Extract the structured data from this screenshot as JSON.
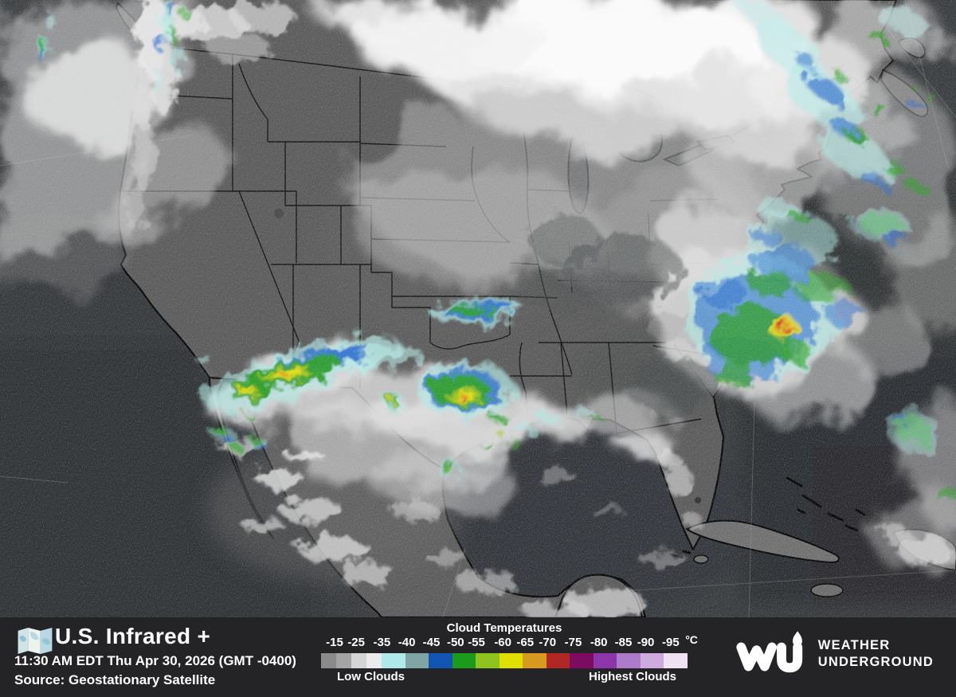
{
  "colors": {
    "footer_background": "#242427",
    "footer_text": "#ffffff",
    "ocean_gray": "#393c3e",
    "land_gray": "#5a5a5a",
    "cloud_white": "#f2f2f2",
    "overlay_cyan": "#aee7e3",
    "overlay_blue": "#2a6ccc",
    "overlay_green": "#2f9e26",
    "overlay_yellow": "#e6df15",
    "overlay_orange": "#e0862a",
    "overlay_red": "#c23b24"
  },
  "footer": {
    "title": "U.S. Infrared +",
    "timestamp": "11:30 AM EDT Thu Apr 30, 2026 (GMT -0400)",
    "source": "Source: Geostationary Satellite",
    "legend": {
      "title": "Cloud Temperatures",
      "unit": "°C",
      "low_label": "Low Clouds",
      "high_label": "Highest Clouds",
      "ticks": [
        {
          "label": "-15",
          "pos": 3.7
        },
        {
          "label": "-25",
          "pos": 9.6
        },
        {
          "label": "-35",
          "pos": 16.6
        },
        {
          "label": "-40",
          "pos": 23.4
        },
        {
          "label": "-45",
          "pos": 30.1
        },
        {
          "label": "-50",
          "pos": 36.7
        },
        {
          "label": "-55",
          "pos": 42.4
        },
        {
          "label": "-60",
          "pos": 49.6
        },
        {
          "label": "-65",
          "pos": 55.7
        },
        {
          "label": "-70",
          "pos": 61.8
        },
        {
          "label": "-75",
          "pos": 68.8
        },
        {
          "label": "-80",
          "pos": 75.8
        },
        {
          "label": "-85",
          "pos": 82.5
        },
        {
          "label": "-90",
          "pos": 88.6
        },
        {
          "label": "-95",
          "pos": 95.4
        }
      ],
      "swatches": [
        {
          "color": "#8a8a8a",
          "width_pct": 4.15
        },
        {
          "color": "#a4a4a4",
          "width_pct": 4.15
        },
        {
          "color": "#d4d4d4",
          "width_pct": 4.15
        },
        {
          "color": "#ebebeb",
          "width_pct": 4.15
        },
        {
          "color": "#b0e9e9",
          "width_pct": 6.42
        },
        {
          "color": "#81a4a4",
          "width_pct": 6.42
        },
        {
          "color": "#1254b2",
          "width_pct": 6.42
        },
        {
          "color": "#1b9a1b",
          "width_pct": 6.42
        },
        {
          "color": "#8fc41f",
          "width_pct": 6.42
        },
        {
          "color": "#dfe000",
          "width_pct": 6.42
        },
        {
          "color": "#d69b1e",
          "width_pct": 6.42
        },
        {
          "color": "#b02723",
          "width_pct": 6.42
        },
        {
          "color": "#7d0b61",
          "width_pct": 6.42
        },
        {
          "color": "#8d36aa",
          "width_pct": 6.42
        },
        {
          "color": "#ad7bca",
          "width_pct": 6.42
        },
        {
          "color": "#cfaade",
          "width_pct": 6.41
        },
        {
          "color": "#efe2f3",
          "width_pct": 6.41
        }
      ]
    },
    "brand": {
      "line1": "WEATHER",
      "line2": "UNDERGROUND"
    }
  }
}
